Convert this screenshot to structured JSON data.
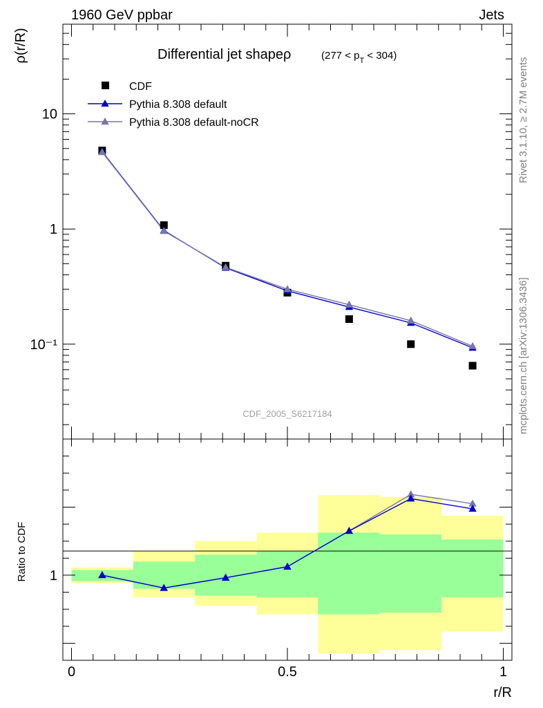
{
  "header": {
    "left": "1960 GeV ppbar",
    "right": "Jets"
  },
  "side_labels": {
    "top": "Rivet 3.1.10, ≥ 2.7M events",
    "bottom": "mcplots.cern.ch [arXiv:1306.3436]"
  },
  "main_title": {
    "main": "Differential jet shapeρ",
    "range_prefix": "(277 < p",
    "range_sub": "T",
    "range_suffix": " < 304)"
  },
  "analysis_id": "CDF_2005_S6217184",
  "chart_data": [
    {
      "type": "scatter",
      "panel": "main",
      "ylabel": "ρ(r/R)",
      "yscale": "log",
      "ylim": [
        0.015,
        60
      ],
      "xlim": [
        -0.02,
        1.02
      ],
      "y_ticks": [
        {
          "value": 10,
          "label": "10"
        },
        {
          "value": 1,
          "label": "1"
        },
        {
          "value": 0.1,
          "label": "10⁻¹"
        }
      ],
      "legend_position": "top-left",
      "series": [
        {
          "name": "CDF",
          "marker": "square",
          "color": "#000000",
          "x": [
            0.071,
            0.214,
            0.357,
            0.5,
            0.643,
            0.786,
            0.929
          ],
          "y": [
            4.8,
            1.08,
            0.48,
            0.28,
            0.165,
            0.1,
            0.065
          ]
        },
        {
          "name": "Pythia 8.308 default",
          "marker": "triangle",
          "color": "#0000cc",
          "x": [
            0.071,
            0.214,
            0.357,
            0.5,
            0.643,
            0.786,
            0.929
          ],
          "y": [
            4.7,
            0.97,
            0.46,
            0.29,
            0.21,
            0.153,
            0.093
          ]
        },
        {
          "name": "Pythia 8.308 default-noCR",
          "marker": "triangle",
          "color": "#7777aa",
          "x": [
            0.071,
            0.214,
            0.357,
            0.5,
            0.643,
            0.786,
            0.929
          ],
          "y": [
            4.65,
            0.96,
            0.465,
            0.3,
            0.22,
            0.16,
            0.096
          ]
        }
      ]
    },
    {
      "type": "line",
      "panel": "ratio",
      "ylabel": "Ratio to CDF",
      "xlabel": "r/R",
      "xlim": [
        -0.02,
        1.02
      ],
      "ylim": [
        0.5,
        1.8
      ],
      "x_ticks": [
        {
          "value": 0,
          "label": "0"
        },
        {
          "value": 0.5,
          "label": "0.5"
        },
        {
          "value": 1,
          "label": "1"
        }
      ],
      "y_ticks": [
        {
          "value": 1,
          "label": "1"
        }
      ],
      "bins": [
        {
          "lo": 0.0,
          "hi": 0.143,
          "stat_lo": 0.965,
          "stat_hi": 1.03,
          "tot_lo": 0.955,
          "tot_hi": 1.045
        },
        {
          "lo": 0.143,
          "hi": 0.286,
          "stat_lo": 0.92,
          "stat_hi": 1.08,
          "tot_lo": 0.87,
          "tot_hi": 1.14
        },
        {
          "lo": 0.286,
          "hi": 0.429,
          "stat_lo": 0.88,
          "stat_hi": 1.12,
          "tot_lo": 0.82,
          "tot_hi": 1.2
        },
        {
          "lo": 0.429,
          "hi": 0.571,
          "stat_lo": 0.87,
          "stat_hi": 1.14,
          "tot_lo": 0.77,
          "tot_hi": 1.25
        },
        {
          "lo": 0.571,
          "hi": 0.714,
          "stat_lo": 0.77,
          "stat_hi": 1.25,
          "tot_lo": 0.54,
          "tot_hi": 1.47
        },
        {
          "lo": 0.714,
          "hi": 0.857,
          "stat_lo": 0.78,
          "stat_hi": 1.24,
          "tot_lo": 0.56,
          "tot_hi": 1.46
        },
        {
          "lo": 0.857,
          "hi": 1.0,
          "stat_lo": 0.87,
          "stat_hi": 1.21,
          "tot_lo": 0.67,
          "tot_hi": 1.35
        }
      ],
      "colors": {
        "stat": "#99ff99",
        "total": "#ffff99"
      },
      "series": [
        {
          "name": "Pythia 8.308 default",
          "color": "#0000cc",
          "x": [
            0.071,
            0.214,
            0.357,
            0.5,
            0.643,
            0.786,
            0.929
          ],
          "y": [
            1.0,
            0.925,
            0.985,
            1.05,
            1.26,
            1.45,
            1.39
          ]
        },
        {
          "name": "Pythia 8.308 default-noCR",
          "color": "#7777aa",
          "x": [
            0.071,
            0.214,
            0.357,
            0.5,
            0.643,
            0.786,
            0.929
          ],
          "y": [
            1.0,
            0.925,
            0.985,
            1.05,
            1.26,
            1.475,
            1.42
          ]
        }
      ]
    }
  ]
}
